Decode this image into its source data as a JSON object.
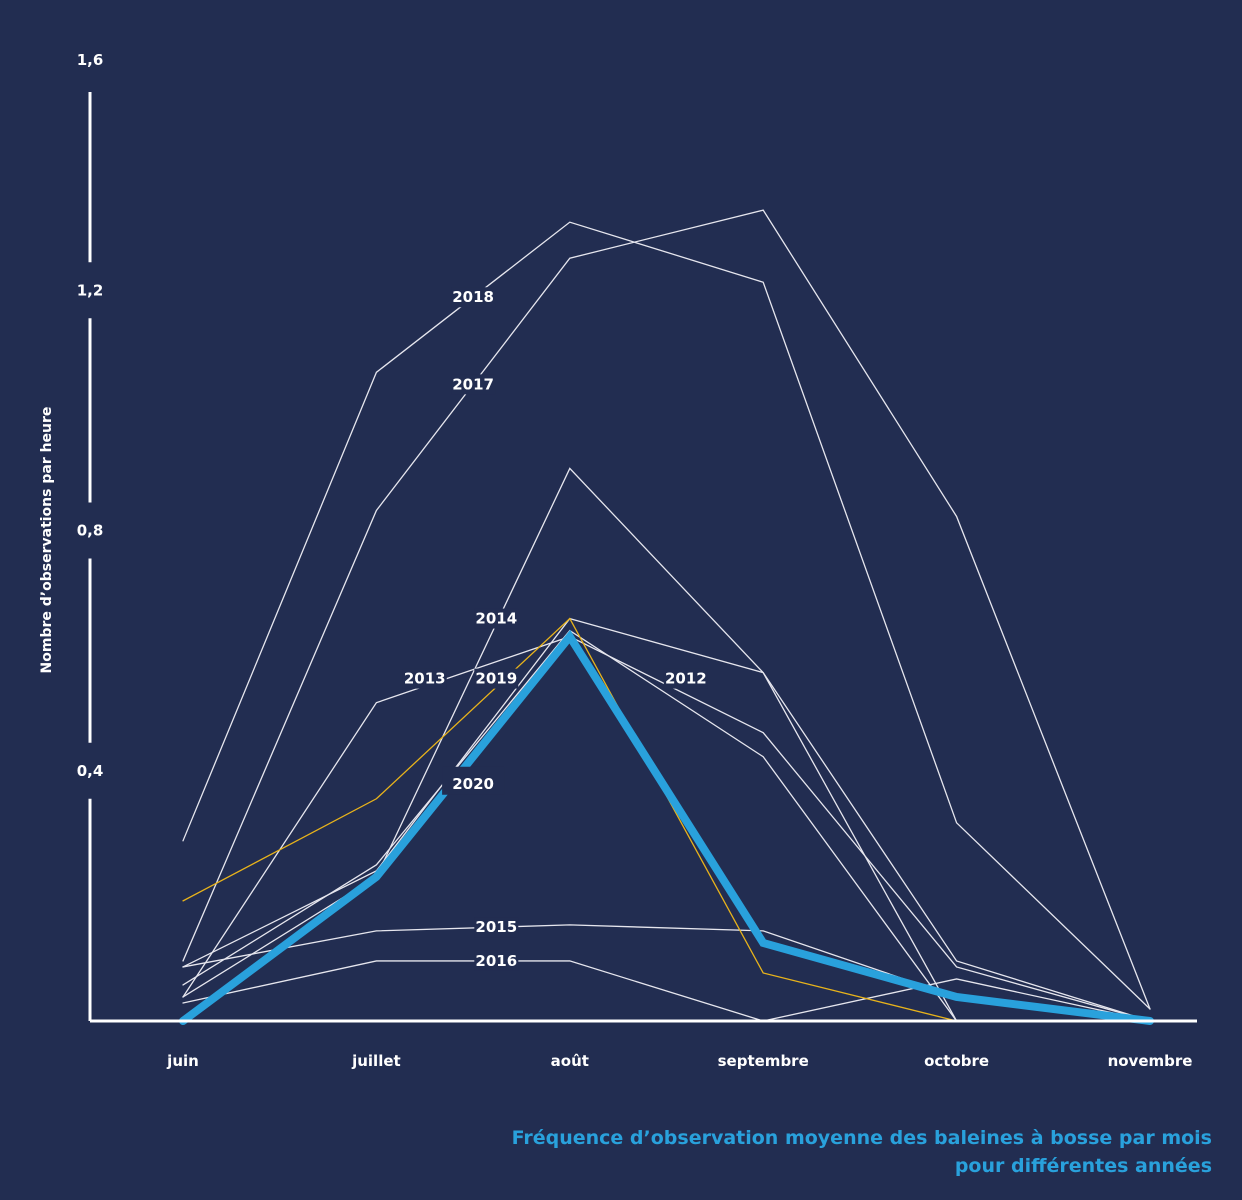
{
  "chart_data": {
    "type": "line",
    "title": "Fréquence d’observation moyenne des baleines à bosse par mois",
    "title_line2": "pour différentes années",
    "xlabel": "",
    "ylabel": "Nombre d’observations par heure",
    "categories": [
      "juin",
      "juillet",
      "août",
      "septembre",
      "octobre",
      "novembre"
    ],
    "ylim": [
      0,
      1.6
    ],
    "yticks": [
      "1,6",
      "1,2",
      "0,8",
      "0,4"
    ],
    "ytick_values": [
      1.6,
      1.2,
      0.8,
      0.4
    ],
    "series": [
      {
        "name": "2018",
        "values": [
          0.3,
          1.08,
          1.33,
          1.23,
          0.33,
          0.02
        ],
        "label_at": 1.5,
        "color": "#e6e6ee",
        "width": 1.3
      },
      {
        "name": "2017",
        "values": [
          0.1,
          0.85,
          1.27,
          1.35,
          0.84,
          0.02
        ],
        "label_at": 1.5,
        "color": "#e6e6ee",
        "width": 1.3
      },
      {
        "name": "",
        "values": [
          0.04,
          0.24,
          0.92,
          0.58,
          0.1,
          0.0
        ],
        "label_at": null,
        "color": "#e6e6ee",
        "width": 1.3
      },
      {
        "name": "2014",
        "values": [
          0.06,
          0.26,
          0.65,
          0.44,
          0.0,
          0.0
        ],
        "label_at": 1.62,
        "label_y": 0.67,
        "color": "#e6e6ee",
        "width": 1.3
      },
      {
        "name": "2013",
        "values": [
          0.04,
          0.53,
          0.64,
          0.48,
          0.09,
          0.0
        ],
        "label_at": 1.25,
        "label_y": 0.57,
        "color": "#e6e6ee",
        "width": 1.3
      },
      {
        "name": "2012",
        "values": [
          0.09,
          0.25,
          0.67,
          0.58,
          0.0,
          0.0
        ],
        "label_at": 2.6,
        "label_y": 0.57,
        "color": "#e6e6ee",
        "width": 1.3
      },
      {
        "name": "2015",
        "values": [
          0.09,
          0.15,
          0.16,
          0.15,
          0.04,
          0.0
        ],
        "label_at": 1.62,
        "color": "#e6e6ee",
        "width": 1.3
      },
      {
        "name": "2016",
        "values": [
          0.03,
          0.1,
          0.1,
          0.0,
          0.07,
          0.0
        ],
        "label_at": 1.62,
        "color": "#e6e6ee",
        "width": 1.3
      },
      {
        "name": "2019",
        "values": [
          0.2,
          0.37,
          0.67,
          0.08,
          0.0,
          0.0
        ],
        "label_at": 1.62,
        "label_y": 0.57,
        "color": "#e8b31b",
        "width": 1.3
      },
      {
        "name": "2020",
        "values": [
          0.0,
          0.24,
          0.64,
          0.13,
          0.04,
          0.0
        ],
        "label_at": 1.5,
        "label_y": 0.4,
        "color": "#29a1dc",
        "width": 8,
        "highlight": true
      }
    ]
  },
  "colors": {
    "background": "#222d51",
    "axis": "#ffffff",
    "highlight": "#29a1dc",
    "accent_2019": "#e8b31b"
  }
}
